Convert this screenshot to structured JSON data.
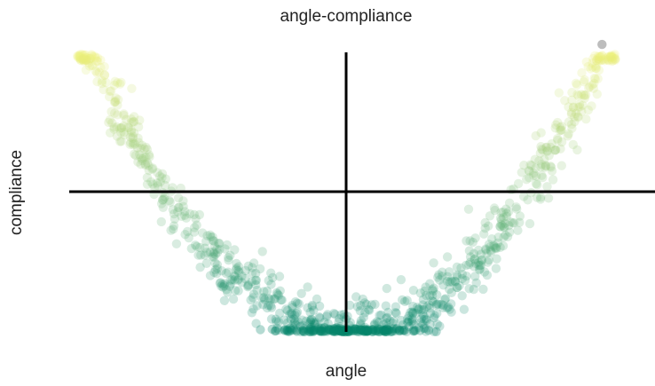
{
  "chart_data": {
    "type": "scatter",
    "title": "angle-compliance",
    "xlabel": "angle",
    "ylabel": "compliance",
    "xlim": [
      -1,
      1
    ],
    "ylim": [
      -1,
      1
    ],
    "grid": false,
    "axes": "crosshair through origin, no tick labels",
    "colormap": [
      "#00836a",
      "#7fbf7b",
      "#f0f27a"
    ],
    "outlier_color": "#bdbdbd",
    "outlier_points": [
      [
        0.93,
        1.05
      ]
    ],
    "shape": "y = 2.3*x^2 - 1",
    "density": "points concentrate near x = 0 where y ≈ -1"
  }
}
